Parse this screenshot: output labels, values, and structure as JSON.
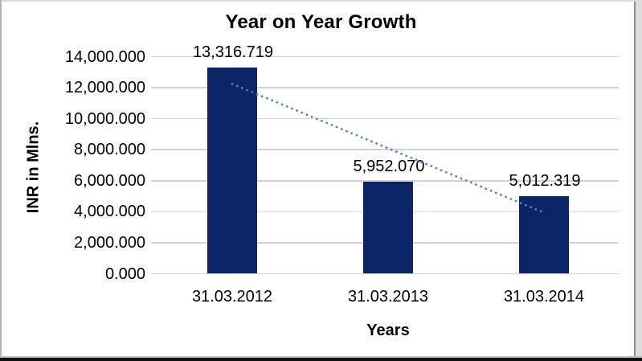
{
  "chart_data": {
    "type": "bar",
    "title": "Year on Year Growth",
    "xlabel": "Years",
    "ylabel": "INR in Mlns.",
    "categories": [
      "31.03.2012",
      "31.03.2013",
      "31.03.2014"
    ],
    "values": [
      13316.719,
      5952.07,
      5012.319
    ],
    "data_labels": [
      "13,316.719",
      "5,952.070",
      "5,012.319"
    ],
    "y_tick_labels": [
      "14,000.000",
      "12,000.000",
      "10,000.000",
      "8,000.000",
      "6,000.000",
      "4,000.000",
      "2,000.000",
      "0.000"
    ],
    "ylim": [
      0,
      14000
    ],
    "y_tick_step": 2000,
    "grid": true,
    "legend": "none",
    "bar_color": "#0b2566",
    "gridline_color": "#d2d2d2",
    "text_color": "#000000",
    "background_color": "#ffffff",
    "trendline": {
      "type": "linear",
      "style": "dotted",
      "color": "#4a86c8",
      "start_value": 12245.9,
      "end_value": 3941.5
    }
  }
}
